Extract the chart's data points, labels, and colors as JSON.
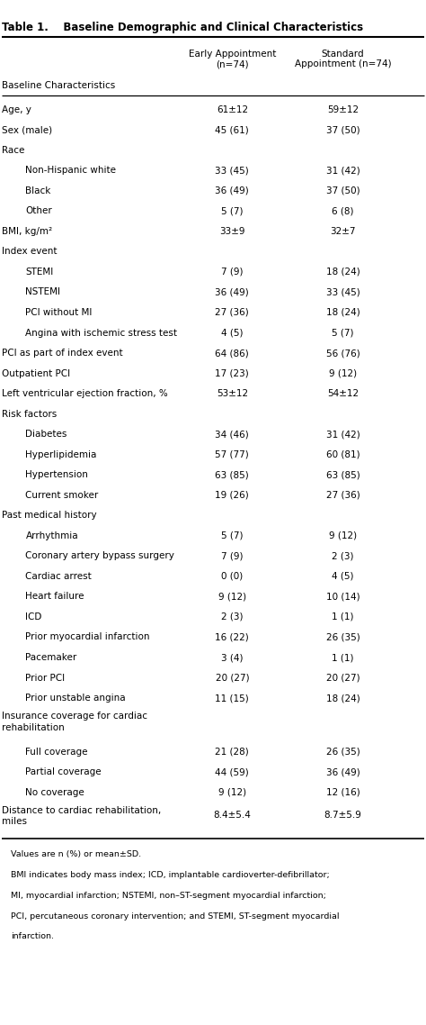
{
  "title": "Table 1.    Baseline Demographic and Clinical Characteristics",
  "col_headers": [
    "Baseline Characteristics",
    "Early Appointment\n(n=74)",
    "Standard\nAppointment (n=74)"
  ],
  "rows": [
    {
      "label": "Age, y",
      "indent": 0,
      "early": "61±12",
      "standard": "59±12"
    },
    {
      "label": "Sex (male)",
      "indent": 0,
      "early": "45 (61)",
      "standard": "37 (50)"
    },
    {
      "label": "Race",
      "indent": 0,
      "early": "",
      "standard": ""
    },
    {
      "label": "Non-Hispanic white",
      "indent": 1,
      "early": "33 (45)",
      "standard": "31 (42)"
    },
    {
      "label": "Black",
      "indent": 1,
      "early": "36 (49)",
      "standard": "37 (50)"
    },
    {
      "label": "Other",
      "indent": 1,
      "early": "5 (7)",
      "standard": "6 (8)"
    },
    {
      "label": "BMI, kg/m²",
      "indent": 0,
      "early": "33±9",
      "standard": "32±7"
    },
    {
      "label": "Index event",
      "indent": 0,
      "early": "",
      "standard": ""
    },
    {
      "label": "STEMI",
      "indent": 1,
      "early": "7 (9)",
      "standard": "18 (24)"
    },
    {
      "label": "NSTEMI",
      "indent": 1,
      "early": "36 (49)",
      "standard": "33 (45)"
    },
    {
      "label": "PCI without MI",
      "indent": 1,
      "early": "27 (36)",
      "standard": "18 (24)"
    },
    {
      "label": "Angina with ischemic stress test",
      "indent": 1,
      "early": "4 (5)",
      "standard": "5 (7)"
    },
    {
      "label": "PCI as part of index event",
      "indent": 0,
      "early": "64 (86)",
      "standard": "56 (76)"
    },
    {
      "label": "Outpatient PCI",
      "indent": 0,
      "early": "17 (23)",
      "standard": "9 (12)"
    },
    {
      "label": "Left ventricular ejection fraction, %",
      "indent": 0,
      "early": "53±12",
      "standard": "54±12"
    },
    {
      "label": "Risk factors",
      "indent": 0,
      "early": "",
      "standard": ""
    },
    {
      "label": "Diabetes",
      "indent": 1,
      "early": "34 (46)",
      "standard": "31 (42)"
    },
    {
      "label": "Hyperlipidemia",
      "indent": 1,
      "early": "57 (77)",
      "standard": "60 (81)"
    },
    {
      "label": "Hypertension",
      "indent": 1,
      "early": "63 (85)",
      "standard": "63 (85)"
    },
    {
      "label": "Current smoker",
      "indent": 1,
      "early": "19 (26)",
      "standard": "27 (36)"
    },
    {
      "label": "Past medical history",
      "indent": 0,
      "early": "",
      "standard": ""
    },
    {
      "label": "Arrhythmia",
      "indent": 1,
      "early": "5 (7)",
      "standard": "9 (12)"
    },
    {
      "label": "Coronary artery bypass surgery",
      "indent": 1,
      "early": "7 (9)",
      "standard": "2 (3)"
    },
    {
      "label": "Cardiac arrest",
      "indent": 1,
      "early": "0 (0)",
      "standard": "4 (5)"
    },
    {
      "label": "Heart failure",
      "indent": 1,
      "early": "9 (12)",
      "standard": "10 (14)"
    },
    {
      "label": "ICD",
      "indent": 1,
      "early": "2 (3)",
      "standard": "1 (1)"
    },
    {
      "label": "Prior myocardial infarction",
      "indent": 1,
      "early": "16 (22)",
      "standard": "26 (35)"
    },
    {
      "label": "Pacemaker",
      "indent": 1,
      "early": "3 (4)",
      "standard": "1 (1)"
    },
    {
      "label": "Prior PCI",
      "indent": 1,
      "early": "20 (27)",
      "standard": "20 (27)"
    },
    {
      "label": "Prior unstable angina",
      "indent": 1,
      "early": "11 (15)",
      "standard": "18 (24)"
    },
    {
      "label": "Insurance coverage for cardiac\nrehabilitation",
      "indent": 0,
      "early": "",
      "standard": ""
    },
    {
      "label": "Full coverage",
      "indent": 1,
      "early": "21 (28)",
      "standard": "26 (35)"
    },
    {
      "label": "Partial coverage",
      "indent": 1,
      "early": "44 (59)",
      "standard": "36 (49)"
    },
    {
      "label": "No coverage",
      "indent": 1,
      "early": "9 (12)",
      "standard": "12 (16)"
    },
    {
      "label": "Distance to cardiac rehabilitation,\nmiles",
      "indent": 0,
      "early": "8.4±5.4",
      "standard": "8.7±5.9"
    }
  ],
  "footnotes": [
    "Values are n (%) or mean±SD.",
    "BMI indicates body mass index; ICD, implantable cardioverter-defibrillator;",
    "MI, myocardial infarction; NSTEMI, non–ST-segment myocardial infarction;",
    "PCI, percutaneous coronary intervention; and STEMI, ST-segment myocardial",
    "infarction."
  ],
  "bg_color": "#ffffff",
  "text_color": "#000000",
  "font_size": 7.5,
  "header_font_size": 7.5,
  "title_font_size": 8.5,
  "footnote_font_size": 6.8,
  "indent_size": 0.055
}
